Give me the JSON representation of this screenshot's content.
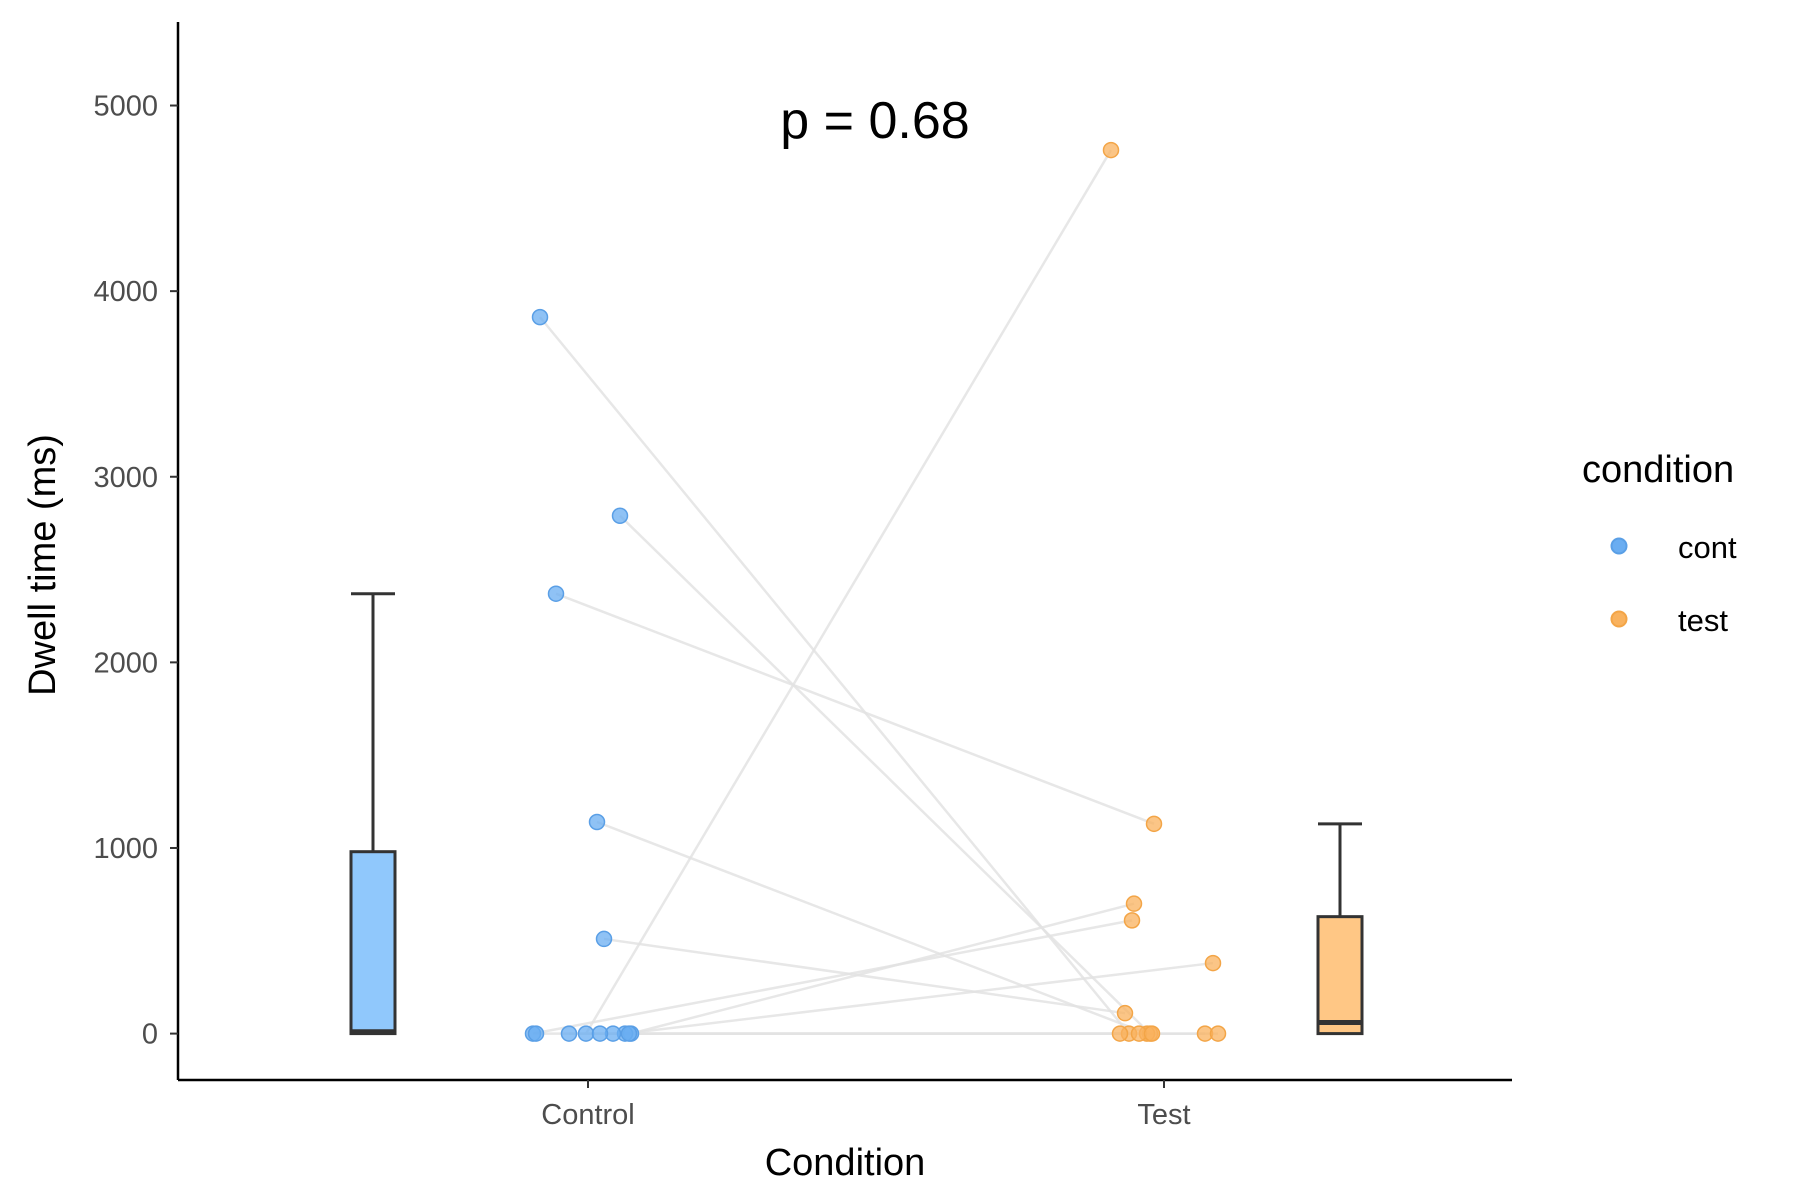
{
  "chart_data": {
    "type": "box-scatter",
    "xlabel": "Condition",
    "ylabel": "Dwell time (ms)",
    "ylim": [
      -250,
      5450
    ],
    "yticks": [
      0,
      1000,
      2000,
      3000,
      4000,
      5000
    ],
    "categories": [
      "Control",
      "Test"
    ],
    "annotation": "p = 0.68",
    "legend": {
      "title": "condition",
      "position": "right",
      "items": [
        {
          "label": "cont",
          "color": "#6AADF1"
        },
        {
          "label": "test",
          "color": "#F9B25E"
        }
      ]
    },
    "colors": {
      "cont_box_fill": "#90C8FC",
      "test_box_fill": "#FFC785",
      "cont_point": "#6AADF1",
      "test_point": "#F9B25E",
      "pair_line": "#E3E3E3",
      "box_stroke": "#333333"
    },
    "boxes": [
      {
        "group": "cont",
        "min": 0,
        "q1": 0,
        "median": 10,
        "q3": 980,
        "max": 2370
      },
      {
        "group": "test",
        "min": 0,
        "q1": 0,
        "median": 60,
        "q3": 630,
        "max": 1130
      }
    ],
    "pairs": [
      {
        "cont": 3860,
        "test": 0
      },
      {
        "cont": 2790,
        "test": 0
      },
      {
        "cont": 2370,
        "test": 1130
      },
      {
        "cont": 1140,
        "test": 0
      },
      {
        "cont": 510,
        "test": 110
      },
      {
        "cont": 0,
        "test": 4760
      },
      {
        "cont": 0,
        "test": 700
      },
      {
        "cont": 0,
        "test": 610
      },
      {
        "cont": 0,
        "test": 380
      },
      {
        "cont": 0,
        "test": 0
      },
      {
        "cont": 0,
        "test": 0
      },
      {
        "cont": 0,
        "test": 0
      },
      {
        "cont": 0,
        "test": 0
      },
      {
        "cont": 0,
        "test": 0
      }
    ]
  }
}
